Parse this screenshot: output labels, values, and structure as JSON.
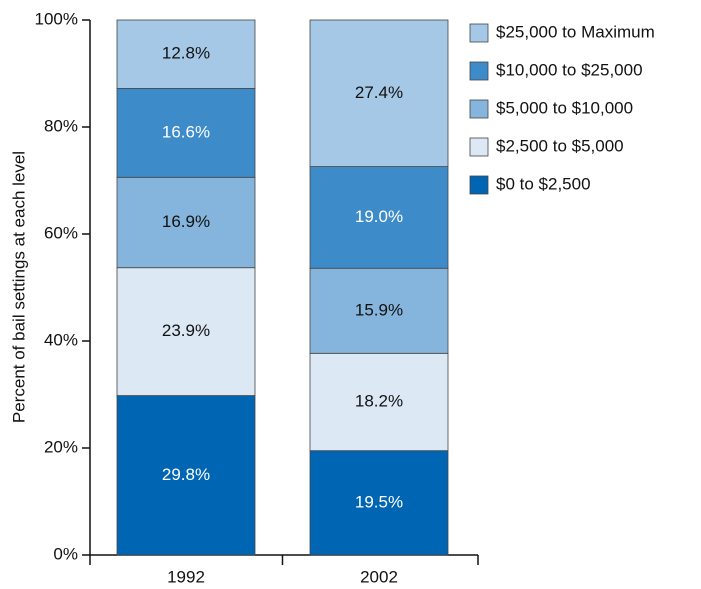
{
  "chart_data": {
    "type": "stacked-bar",
    "y_label": "Percent of bail settings at each level",
    "categories": [
      "1992",
      "2002"
    ],
    "series": [
      {
        "name": "$0 to $2,500",
        "color": "#0066b3",
        "label_color": "#ffffff",
        "values": [
          29.8,
          19.5
        ],
        "value_labels": [
          "29.8%",
          "19.5%"
        ]
      },
      {
        "name": "$2,500 to $5,000",
        "color": "#dce9f5",
        "label_color": "#111111",
        "values": [
          23.9,
          18.2
        ],
        "value_labels": [
          "23.9%",
          "18.2%"
        ]
      },
      {
        "name": "$5,000 to $10,000",
        "color": "#85b5dc",
        "label_color": "#111111",
        "values": [
          16.9,
          15.9
        ],
        "value_labels": [
          "16.9%",
          "15.9%"
        ]
      },
      {
        "name": "$10,000 to $25,000",
        "color": "#3d8bc9",
        "label_color": "#ffffff",
        "values": [
          16.6,
          19.0
        ],
        "value_labels": [
          "16.6%",
          "19.0%"
        ]
      },
      {
        "name": "$25,000 to Maximum",
        "color": "#a4c8e6",
        "label_color": "#111111",
        "values": [
          12.8,
          27.4
        ],
        "value_labels": [
          "12.8%",
          "27.4%"
        ]
      }
    ],
    "ylim": [
      0,
      100
    ],
    "yticks": [
      {
        "value": 0,
        "label": "0%"
      },
      {
        "value": 20,
        "label": "20%"
      },
      {
        "value": 40,
        "label": "40%"
      },
      {
        "value": 60,
        "label": "60%"
      },
      {
        "value": 80,
        "label": "80%"
      },
      {
        "value": 100,
        "label": "100%"
      }
    ],
    "legend": "top-right"
  }
}
